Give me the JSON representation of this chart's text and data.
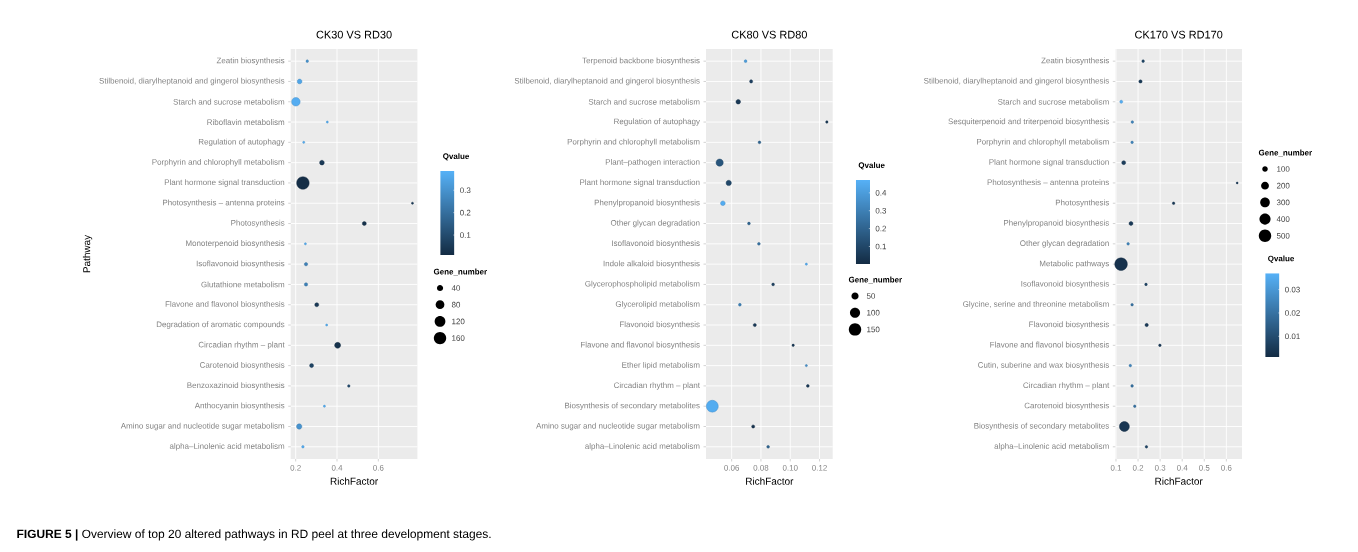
{
  "chart_data": [
    {
      "type": "bubble",
      "orientation": "horizontal",
      "title": "CK30 VS RD30",
      "xlabel": "RichFactor",
      "ylabel": "Pathway",
      "clabel": "Qvalue",
      "legend_title": "Gene_number",
      "grid": true,
      "categories": [
        "Zeatin biosynthesis",
        "Stilbenoid, diarylheptanoid and gingerol biosynthesis",
        "Starch and sucrose metabolism",
        "Riboflavin metabolism",
        "Regulation of autophagy",
        "Porphyrin and chlorophyll metabolism",
        "Plant hormone signal transduction",
        "Photosynthesis – antenna proteins",
        "Photosynthesis",
        "Monoterpenoid biosynthesis",
        "Isoflavonoid biosynthesis",
        "Glutathione metabolism",
        "Flavone and flavonol biosynthesis",
        "Degradation of aromatic compounds",
        "Circadian rhythm – plant",
        "Carotenoid biosynthesis",
        "Benzoxazinoid biosynthesis",
        "Anthocyanin biosynthesis",
        "Amino sugar and nucleotide sugar metabolism",
        "alpha–Linolenic acid metabolism"
      ],
      "values": [
        0.256,
        0.219,
        0.201,
        0.353,
        0.239,
        0.327,
        0.235,
        0.765,
        0.532,
        0.247,
        0.25,
        0.25,
        0.302,
        0.35,
        0.403,
        0.277,
        0.457,
        0.339,
        0.217,
        0.235
      ],
      "sizes": [
        7,
        23,
        78,
        5,
        5,
        23,
        165,
        5,
        17,
        5,
        12,
        12,
        17,
        5,
        37,
        17,
        7,
        5,
        30,
        7
      ],
      "cvalues": [
        0.3,
        0.35,
        0.37,
        0.37,
        0.37,
        0.05,
        0.02,
        0.05,
        0.03,
        0.37,
        0.25,
        0.25,
        0.05,
        0.37,
        0.03,
        0.08,
        0.1,
        0.37,
        0.3,
        0.37
      ],
      "size_legend": [
        40,
        80,
        120,
        160
      ],
      "xlim": [
        0.176,
        0.789
      ],
      "xticks": [
        0.2,
        0.4,
        0.6
      ],
      "clim": [
        0.011,
        0.386
      ],
      "cticks": [
        0.1,
        0.2,
        0.3
      ],
      "annotations": [
        "**FIGURE 5 |** Overview of top 20 altered pathways in RD peel at three development stages."
      ]
    },
    {
      "type": "bubble",
      "orientation": "horizontal",
      "title": "CK80 VS RD80",
      "xlabel": "RichFactor",
      "clabel": "Qvalue",
      "legend_title": "Gene_number",
      "grid": true,
      "categories": [
        "Terpenoid backbone biosynthesis",
        "Stilbenoid, diarylheptanoid and gingerol biosynthesis",
        "Starch and sucrose metabolism",
        "Regulation of autophagy",
        "Porphyrin and chlorophyll metabolism",
        "Plant–pathogen interaction",
        "Plant hormone signal transduction",
        "Phenylpropanoid biosynthesis",
        "Other glycan degradation",
        "Isoflavonoid biosynthesis",
        "Indole alkaloid biosynthesis",
        "Glycerophospholipid metabolism",
        "Glycerolipid metabolism",
        "Flavonoid biosynthesis",
        "Flavone and flavonol biosynthesis",
        "Ether lipid metabolism",
        "Circadian rhythm – plant",
        "Biosynthesis of secondary metabolites",
        "Amino sugar and nucleotide sugar metabolism",
        "alpha–Linolenic acid metabolism"
      ],
      "values": [
        0.0695,
        0.0733,
        0.0645,
        0.125,
        0.079,
        0.0518,
        0.058,
        0.054,
        0.0718,
        0.0786,
        0.111,
        0.0883,
        0.0656,
        0.0758,
        0.102,
        0.111,
        0.112,
        0.0468,
        0.0747,
        0.0849
      ],
      "sizes": [
        8,
        10,
        21,
        6,
        8,
        52,
        28,
        21,
        8,
        8,
        5,
        8,
        8,
        10,
        6,
        5,
        8,
        140,
        10,
        8
      ],
      "cvalues": [
        0.4,
        0.08,
        0.05,
        0.05,
        0.2,
        0.15,
        0.1,
        0.45,
        0.2,
        0.25,
        0.45,
        0.08,
        0.3,
        0.05,
        0.05,
        0.35,
        0.05,
        0.45,
        0.03,
        0.2
      ],
      "size_legend": [
        50,
        100,
        150
      ],
      "xlim": [
        0.0425,
        0.129
      ],
      "xticks": [
        0.06,
        0.08,
        {
          "value": 0.1,
          "label": "0.10"
        },
        0.12
      ],
      "clim": [
        0.002,
        0.472
      ],
      "cticks": [
        0.1,
        0.2,
        0.3,
        0.4
      ]
    },
    {
      "type": "bubble",
      "orientation": "horizontal",
      "title": "CK170 VS RD170",
      "xlabel": "RichFactor",
      "clabel": "Qvalue",
      "legend_title": "Gene_number",
      "grid": true,
      "categories": [
        "Zeatin biosynthesis",
        "Stilbenoid, diarylheptanoid and gingerol biosynthesis",
        "Starch and sucrose metabolism",
        "Sesquiterpenoid and triterpenoid biosynthesis",
        "Porphyrin and chlorophyll metabolism",
        "Plant hormone signal transduction",
        "Photosynthesis – antenna proteins",
        "Photosynthesis",
        "Phenylpropanoid biosynthesis",
        "Other glycan degradation",
        "Metabolic pathways",
        "Isoflavonoid biosynthesis",
        "Glycine, serine and threonine metabolism",
        "Flavonoid biosynthesis",
        "Flavone and flavonol biosynthesis",
        "Cutin, suberine and wax biosynthesis",
        "Circadian rhythm – plant",
        "Carotenoid biosynthesis",
        "Biosynthesis of secondary metabolites",
        "alpha–Linolenic acid metabolism"
      ],
      "values": [
        0.223,
        0.211,
        0.124,
        0.174,
        0.173,
        0.135,
        0.649,
        0.361,
        0.168,
        0.155,
        0.123,
        0.236,
        0.173,
        0.239,
        0.299,
        0.165,
        0.173,
        0.185,
        0.138,
        0.238
      ],
      "sizes": [
        23,
        36,
        30,
        23,
        23,
        52,
        13,
        23,
        52,
        23,
        520,
        23,
        23,
        36,
        23,
        23,
        23,
        23,
        325,
        23
      ],
      "cvalues": [
        0.008,
        0.005,
        0.036,
        0.025,
        0.025,
        0.006,
        0.005,
        0.005,
        0.005,
        0.025,
        0.003,
        0.008,
        0.02,
        0.005,
        0.005,
        0.025,
        0.02,
        0.02,
        0.004,
        0.008
      ],
      "size_legend": [
        100,
        200,
        300,
        400,
        500
      ],
      "xlim": [
        0.097,
        0.671
      ],
      "xticks": [
        0.1,
        0.2,
        0.3,
        0.4,
        0.5,
        0.6
      ],
      "clim": [
        0.001,
        0.037
      ],
      "cticks": [
        0.01,
        0.02,
        0.03
      ]
    }
  ]
}
